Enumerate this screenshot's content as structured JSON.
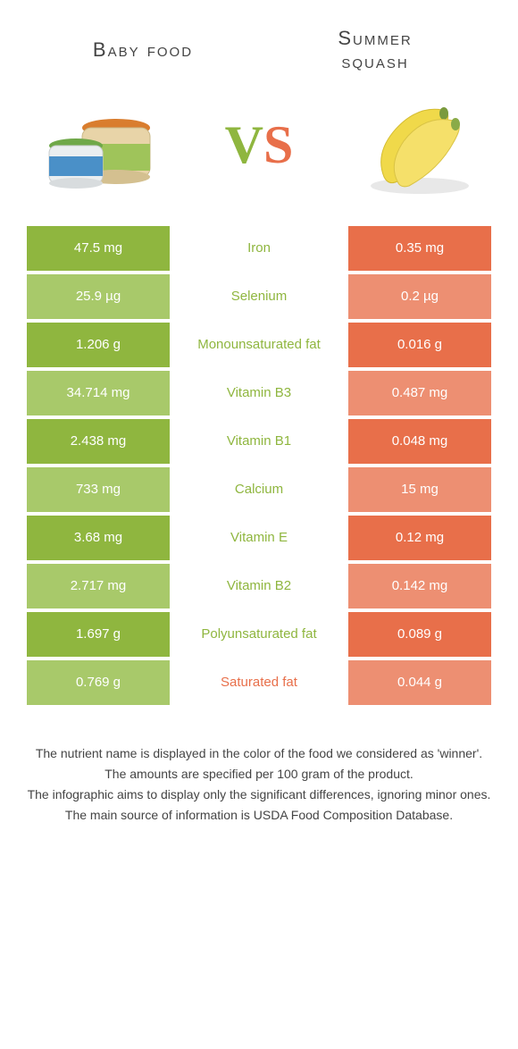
{
  "colors": {
    "left": "#8fb63f",
    "right": "#e86f4a",
    "left_dim": "#a8c96a",
    "right_dim": "#ed8f72",
    "text_mid_left": "#8fb63f",
    "text_mid_right": "#e86f4a",
    "body_text": "#444444",
    "bg": "#ffffff"
  },
  "fonts": {
    "title_size": 22,
    "cell_size": 15,
    "vs_size": 60,
    "foot_size": 14
  },
  "header": {
    "left_title": "Baby food",
    "right_title_line1": "Summer",
    "right_title_line2": "squash"
  },
  "vs": {
    "v": "V",
    "s": "S"
  },
  "rows": [
    {
      "left": "47.5 mg",
      "label": "Iron",
      "right": "0.35 mg",
      "winner": "left"
    },
    {
      "left": "25.9 µg",
      "label": "Selenium",
      "right": "0.2 µg",
      "winner": "left"
    },
    {
      "left": "1.206 g",
      "label": "Monounsaturated fat",
      "right": "0.016 g",
      "winner": "left"
    },
    {
      "left": "34.714 mg",
      "label": "Vitamin B3",
      "right": "0.487 mg",
      "winner": "left"
    },
    {
      "left": "2.438 mg",
      "label": "Vitamin B1",
      "right": "0.048 mg",
      "winner": "left"
    },
    {
      "left": "733 mg",
      "label": "Calcium",
      "right": "15 mg",
      "winner": "left"
    },
    {
      "left": "3.68 mg",
      "label": "Vitamin E",
      "right": "0.12 mg",
      "winner": "left"
    },
    {
      "left": "2.717 mg",
      "label": "Vitamin B2",
      "right": "0.142 mg",
      "winner": "left"
    },
    {
      "left": "1.697 g",
      "label": "Polyunsaturated fat",
      "right": "0.089 g",
      "winner": "left"
    },
    {
      "left": "0.769 g",
      "label": "Saturated fat",
      "right": "0.044 g",
      "winner": "right"
    }
  ],
  "footnotes": [
    "The nutrient name is displayed in the color of the food we considered as 'winner'.",
    "The amounts are specified per 100 gram of the product.",
    "The infographic aims to display only the significant differences, ignoring minor ones.",
    "The main source of information is USDA Food Composition Database."
  ]
}
